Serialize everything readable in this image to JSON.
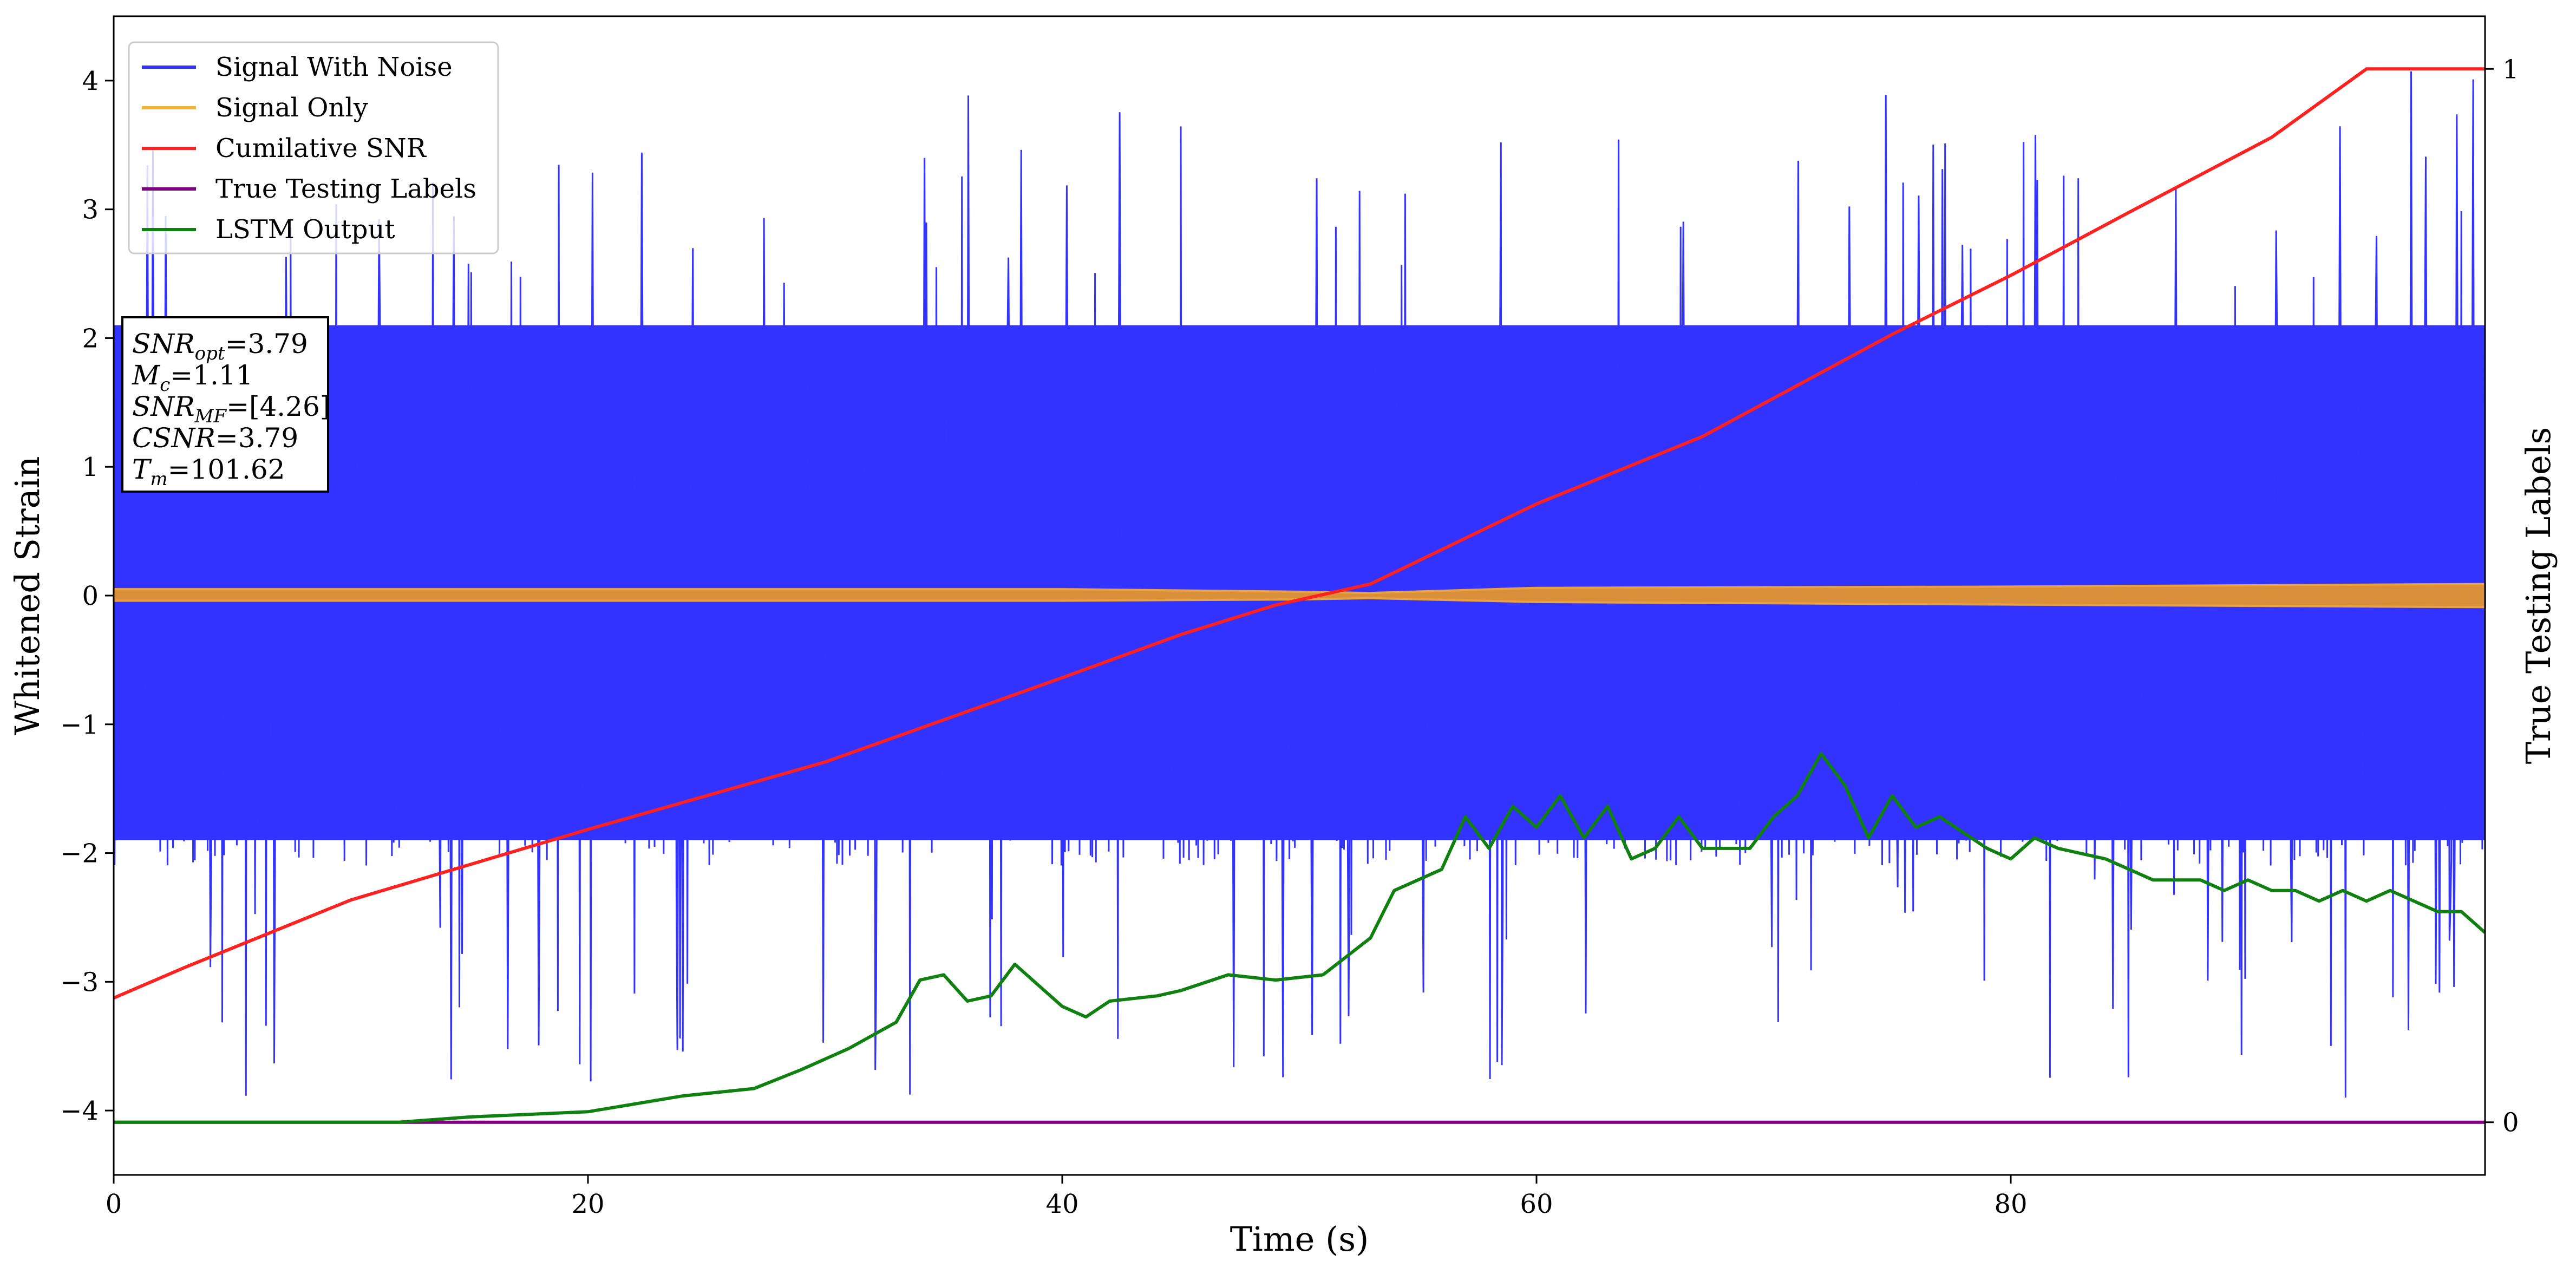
{
  "chart_data": {
    "type": "line",
    "title": "",
    "xlabel": "Time (s)",
    "ylabel": "Whitened Strain",
    "y2label": "True Testing Labels",
    "xlim": [
      0,
      100
    ],
    "ylim": [
      -4.5,
      4.5
    ],
    "y2lim": [
      -0.05,
      1.05
    ],
    "xticks": [
      "0",
      "20",
      "40",
      "60",
      "80"
    ],
    "yticks": [
      "4",
      "3",
      "2",
      "1",
      "0",
      "-1",
      "-2",
      "-3",
      "-4"
    ],
    "y2ticks": [
      "1",
      "0"
    ],
    "grid": false,
    "legend": {
      "placement": "top-left",
      "entries": [
        {
          "name": "Signal With Noise",
          "color": "#3333ff"
        },
        {
          "name": "Signal Only",
          "color": "#f5b335"
        },
        {
          "name": "Cumilative SNR",
          "color": "#ff2020"
        },
        {
          "name": "True Testing Labels",
          "color": "#800080"
        },
        {
          "name": "LSTM Output",
          "color": "#108010"
        }
      ]
    },
    "annotation": {
      "placement": "upper-left",
      "lines": [
        {
          "sym": "SNR",
          "sub": "opt",
          "val": "=3.79"
        },
        {
          "sym": "M",
          "sub": "c",
          "val": "=1.11"
        },
        {
          "sym": "SNR",
          "sub": "MF",
          "val": "=[4.26]"
        },
        {
          "sym": "CSNR",
          "sub": "",
          "val": "=3.79"
        },
        {
          "sym": "T",
          "sub": "m",
          "val": "=101.62"
        }
      ]
    },
    "series": [
      {
        "name": "Signal With Noise",
        "axis": "left",
        "style": "dense-noise",
        "description_values": {
          "typical_band": [
            -1.9,
            2.1
          ],
          "max_peak": 4.1,
          "min_peak": -3.9
        }
      },
      {
        "name": "Signal Only",
        "axis": "left",
        "x": [
          0,
          20,
          40,
          50,
          53,
          60,
          80,
          100
        ],
        "upper": [
          0.05,
          0.05,
          0.05,
          0.03,
          0.02,
          0.06,
          0.07,
          0.09
        ],
        "lower": [
          -0.04,
          -0.04,
          -0.04,
          -0.03,
          -0.02,
          -0.05,
          -0.07,
          -0.09
        ]
      },
      {
        "name": "Cumilative SNR",
        "axis": "right",
        "x": [
          0,
          3,
          10,
          20,
          30,
          40,
          45,
          49,
          53,
          60,
          67,
          75,
          80,
          85,
          91,
          95,
          100
        ],
        "y": [
          0.118,
          0.147,
          0.211,
          0.278,
          0.342,
          0.422,
          0.463,
          0.491,
          0.511,
          0.587,
          0.651,
          0.748,
          0.804,
          0.864,
          0.935,
          1.0,
          1.0
        ]
      },
      {
        "name": "True Testing Labels",
        "axis": "right",
        "x": [
          0,
          100
        ],
        "y": [
          0,
          0
        ]
      },
      {
        "name": "LSTM Output",
        "axis": "right",
        "x": [
          0,
          12,
          15,
          20,
          24,
          27,
          29,
          31,
          33,
          34,
          35,
          36,
          37,
          38,
          40,
          41,
          42,
          44,
          45,
          47,
          49,
          51,
          53,
          54,
          56,
          57,
          58,
          59,
          60,
          61,
          62,
          63,
          64,
          65,
          66,
          67,
          69,
          70,
          71,
          72,
          73,
          74,
          75,
          76,
          77,
          79,
          80,
          81,
          82,
          84,
          85,
          86,
          88,
          89,
          90,
          91,
          92,
          93,
          94,
          95,
          96,
          97,
          98,
          99,
          100
        ],
        "y": [
          0.0,
          0.0,
          0.005,
          0.01,
          0.025,
          0.032,
          0.05,
          0.07,
          0.095,
          0.135,
          0.14,
          0.115,
          0.12,
          0.15,
          0.11,
          0.1,
          0.115,
          0.12,
          0.125,
          0.14,
          0.135,
          0.14,
          0.175,
          0.22,
          0.24,
          0.29,
          0.26,
          0.3,
          0.28,
          0.31,
          0.27,
          0.3,
          0.25,
          0.26,
          0.29,
          0.26,
          0.26,
          0.29,
          0.31,
          0.35,
          0.32,
          0.27,
          0.31,
          0.28,
          0.29,
          0.26,
          0.25,
          0.27,
          0.26,
          0.25,
          0.24,
          0.23,
          0.23,
          0.22,
          0.23,
          0.22,
          0.22,
          0.21,
          0.22,
          0.21,
          0.22,
          0.21,
          0.2,
          0.2,
          0.18
        ]
      }
    ]
  }
}
